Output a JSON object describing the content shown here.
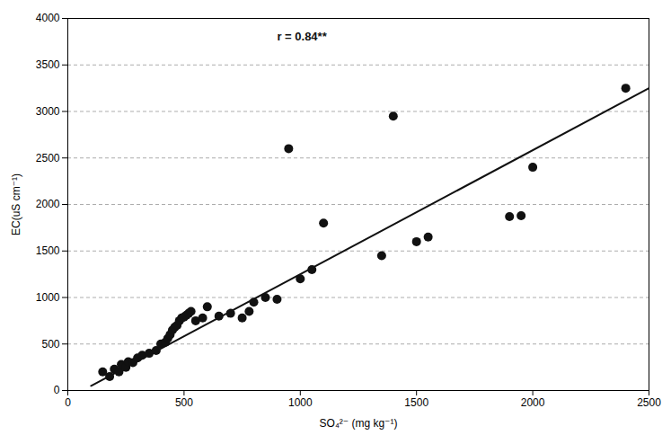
{
  "chart_data": {
    "type": "scatter",
    "xlabel": "SO₄²⁻ (mg kg⁻¹)",
    "ylabel": "EC(uS cm⁻¹)",
    "series": [
      {
        "type": "scatter",
        "color": "#111111",
        "x": [
          150,
          180,
          200,
          220,
          230,
          250,
          260,
          280,
          300,
          320,
          350,
          380,
          400,
          420,
          430,
          440,
          450,
          460,
          470,
          480,
          490,
          500,
          510,
          520,
          530,
          550,
          580,
          600,
          650,
          700,
          750,
          780,
          800,
          850,
          900,
          950,
          1000,
          1050,
          1100,
          1350,
          1400,
          1500,
          1550,
          1900,
          1950,
          2000,
          2400
        ],
        "values": [
          200,
          150,
          230,
          200,
          280,
          250,
          310,
          300,
          350,
          380,
          400,
          430,
          500,
          520,
          560,
          600,
          650,
          680,
          700,
          750,
          780,
          790,
          810,
          830,
          850,
          750,
          780,
          900,
          800,
          830,
          780,
          850,
          950,
          1000,
          980,
          2600,
          1200,
          1300,
          1800,
          1450,
          2950,
          1600,
          1650,
          1870,
          1880,
          2400,
          3250
        ]
      },
      {
        "type": "line",
        "color": "#111111",
        "x": [
          100,
          2500
        ],
        "values": [
          50,
          3250
        ]
      }
    ],
    "annotations": [
      {
        "text": "r = 0.84**",
        "x": 900,
        "y": 3850
      }
    ],
    "xlim": [
      0,
      2500
    ],
    "ylim": [
      0,
      4000
    ],
    "xticks": [
      0,
      500,
      1000,
      1500,
      2000,
      2500
    ],
    "yticks": [
      0,
      500,
      1000,
      1500,
      2000,
      2500,
      3000,
      3500,
      4000
    ],
    "grid": "y"
  }
}
